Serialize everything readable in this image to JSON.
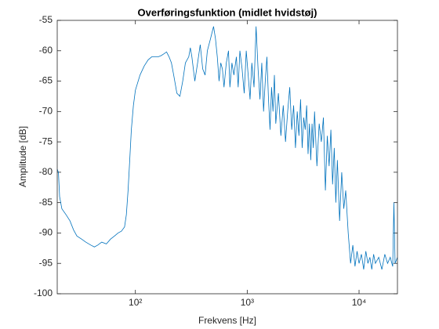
{
  "chart_data": {
    "type": "line",
    "title": "Overføringsfunktion (midlet hvidstøj)",
    "xlabel": "Frekvens [Hz]",
    "ylabel": "Amplitude [dB]",
    "xscale": "log",
    "xlim": [
      20,
      22050
    ],
    "ylim": [
      -100,
      -55
    ],
    "xticks": [
      {
        "value": 100,
        "label": "10²"
      },
      {
        "value": 1000,
        "label": "10³"
      },
      {
        "value": 10000,
        "label": "10⁴"
      }
    ],
    "yticks": [
      -100,
      -95,
      -90,
      -85,
      -80,
      -75,
      -70,
      -65,
      -60,
      -55
    ],
    "color": "#0072bd",
    "x": [
      20,
      20.5,
      21,
      22,
      24,
      26,
      28,
      30,
      33,
      36,
      40,
      43,
      46,
      50,
      55,
      60,
      65,
      70,
      75,
      80,
      83,
      86,
      89,
      92,
      96,
      100,
      110,
      120,
      130,
      140,
      150,
      160,
      170,
      180,
      190,
      200,
      210,
      220,
      235,
      250,
      265,
      280,
      300,
      310,
      320,
      340,
      360,
      380,
      400,
      420,
      440,
      470,
      500,
      520,
      540,
      560,
      580,
      600,
      620,
      650,
      680,
      700,
      730,
      760,
      800,
      830,
      860,
      900,
      940,
      980,
      1020,
      1060,
      1100,
      1150,
      1200,
      1250,
      1300,
      1350,
      1400,
      1450,
      1500,
      1550,
      1600,
      1650,
      1700,
      1750,
      1800,
      1900,
      2000,
      2100,
      2200,
      2300,
      2400,
      2500,
      2600,
      2700,
      2800,
      2900,
      3000,
      3100,
      3200,
      3300,
      3400,
      3500,
      3600,
      3700,
      3800,
      3900,
      4000,
      4200,
      4400,
      4600,
      4800,
      5000,
      5200,
      5400,
      5600,
      5800,
      6000,
      6200,
      6400,
      6700,
      7000,
      7300,
      7600,
      8000,
      8400,
      8800,
      9200,
      9600,
      10000,
      10500,
      11000,
      11500,
      12000,
      12500,
      13000,
      13500,
      14000,
      15000,
      16000,
      17000,
      18000,
      19000,
      20000,
      20500,
      21000,
      22050
    ],
    "values": [
      -79.5,
      -80,
      -84,
      -86,
      -87,
      -88,
      -89.5,
      -90.5,
      -91,
      -91.5,
      -92,
      -92.3,
      -92,
      -91.5,
      -91.8,
      -91,
      -90.5,
      -90,
      -89.7,
      -89,
      -87,
      -83,
      -78,
      -73,
      -69,
      -66.5,
      -64,
      -62.5,
      -61.5,
      -61,
      -61,
      -61,
      -60.8,
      -60.5,
      -60.2,
      -61,
      -62,
      -64,
      -67,
      -67.5,
      -65,
      -62,
      -61,
      -59.5,
      -61,
      -65,
      -62,
      -59,
      -63,
      -64,
      -60,
      -58,
      -56,
      -58,
      -61,
      -65,
      -62,
      -63,
      -66,
      -62,
      -60,
      -66,
      -62,
      -64,
      -61,
      -66,
      -60,
      -63,
      -67,
      -60,
      -64,
      -68,
      -62,
      -66,
      -56,
      -63,
      -68,
      -62,
      -70,
      -65,
      -61,
      -68,
      -73,
      -66,
      -70,
      -64,
      -72,
      -67,
      -74,
      -69,
      -75,
      -70,
      -66,
      -73,
      -69,
      -76,
      -70,
      -74,
      -68,
      -76,
      -71,
      -73,
      -69,
      -77,
      -72,
      -78,
      -72,
      -76,
      -70,
      -79,
      -72,
      -75,
      -71,
      -83,
      -74,
      -79,
      -73,
      -82,
      -76,
      -85,
      -78,
      -88,
      -80,
      -86,
      -83,
      -90,
      -95,
      -92,
      -95.5,
      -93,
      -95,
      -93.5,
      -96,
      -93,
      -95,
      -94,
      -96,
      -93.5,
      -95,
      -94,
      -96,
      -93.5,
      -95,
      -94,
      -95.5,
      -85,
      -95,
      -94
    ]
  }
}
